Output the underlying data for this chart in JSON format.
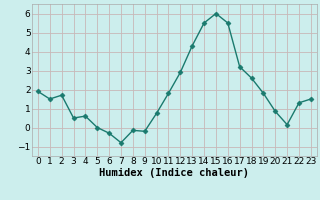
{
  "x": [
    0,
    1,
    2,
    3,
    4,
    5,
    6,
    7,
    8,
    9,
    10,
    11,
    12,
    13,
    14,
    15,
    16,
    17,
    18,
    19,
    20,
    21,
    22,
    23
  ],
  "y": [
    1.9,
    1.5,
    1.7,
    0.5,
    0.6,
    0.0,
    -0.3,
    -0.8,
    -0.15,
    -0.2,
    0.75,
    1.8,
    2.9,
    4.3,
    5.5,
    6.0,
    5.5,
    3.2,
    2.6,
    1.8,
    0.85,
    0.15,
    1.3,
    1.5
  ],
  "line_color": "#1a7a6e",
  "marker": "D",
  "marker_size": 2.5,
  "bg_color": "#cceeed",
  "grid_color": "#c8b8b8",
  "xlabel": "Humidex (Indice chaleur)",
  "ylim": [
    -1.5,
    6.5
  ],
  "xlim": [
    -0.5,
    23.5
  ],
  "yticks": [
    -1,
    0,
    1,
    2,
    3,
    4,
    5,
    6
  ],
  "xticks": [
    0,
    1,
    2,
    3,
    4,
    5,
    6,
    7,
    8,
    9,
    10,
    11,
    12,
    13,
    14,
    15,
    16,
    17,
    18,
    19,
    20,
    21,
    22,
    23
  ],
  "tick_fontsize": 6.5,
  "label_fontsize": 7.5
}
